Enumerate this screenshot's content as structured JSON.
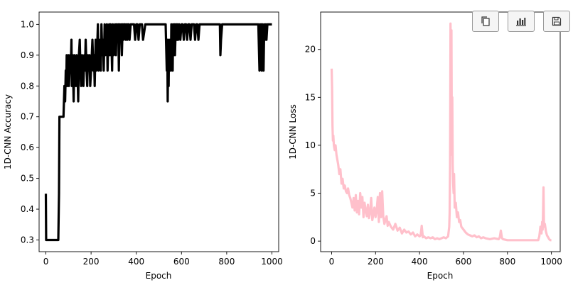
{
  "toolbar": {
    "buttons": [
      {
        "name": "copy-button",
        "icon": "copy-icon"
      },
      {
        "name": "chart-button",
        "icon": "bar-chart-icon"
      },
      {
        "name": "save-button",
        "icon": "floppy-disk-icon"
      }
    ]
  },
  "chart_data": [
    {
      "type": "line",
      "title": "",
      "xlabel": "Epoch",
      "ylabel": "1D-CNN Accuracy",
      "xlim": [
        -30,
        1030
      ],
      "ylim": [
        0.262,
        1.04
      ],
      "xticks": [
        0,
        200,
        400,
        600,
        800,
        1000
      ],
      "yticks": [
        0.3,
        0.4,
        0.5,
        0.6,
        0.7,
        0.8,
        0.9,
        1.0
      ],
      "color": "#000000",
      "grid": false,
      "series": [
        {
          "x": [
            0,
            1,
            2,
            40,
            55,
            58,
            60,
            78,
            82,
            85,
            88,
            90,
            92,
            95,
            97,
            100,
            102,
            105,
            108,
            110,
            113,
            115,
            118,
            120,
            123,
            126,
            130,
            133,
            136,
            140,
            143,
            146,
            150,
            153,
            156,
            160,
            163,
            166,
            170,
            173,
            176,
            180,
            183,
            186,
            190,
            193,
            196,
            200,
            203,
            206,
            210,
            213,
            216,
            220,
            223,
            226,
            230,
            233,
            236,
            240,
            243,
            246,
            250,
            253,
            256,
            260,
            263,
            266,
            270,
            273,
            276,
            280,
            283,
            286,
            290,
            293,
            296,
            300,
            303,
            306,
            310,
            313,
            316,
            320,
            323,
            326,
            330,
            333,
            336,
            340,
            343,
            346,
            350,
            353,
            356,
            360,
            363,
            366,
            370,
            375,
            380,
            385,
            390,
            395,
            400,
            405,
            410,
            415,
            420,
            425,
            430,
            440,
            450,
            460,
            470,
            480,
            490,
            500,
            510,
            520,
            530,
            535,
            537,
            539,
            541,
            543,
            545,
            547,
            549,
            551,
            553,
            555,
            557,
            559,
            561,
            563,
            565,
            567,
            569,
            571,
            573,
            575,
            577,
            579,
            581,
            583,
            585,
            590,
            595,
            600,
            605,
            610,
            615,
            620,
            625,
            630,
            635,
            640,
            645,
            650,
            655,
            660,
            665,
            670,
            675,
            680,
            700,
            720,
            740,
            760,
            770,
            772,
            775,
            780,
            800,
            850,
            900,
            940,
            945,
            948,
            950,
            953,
            955,
            958,
            960,
            963,
            966,
            970,
            973,
            976,
            980,
            985,
            990,
            1000
          ],
          "y": [
            0.45,
            0.3,
            0.3,
            0.3,
            0.3,
            0.45,
            0.7,
            0.7,
            0.8,
            0.75,
            0.85,
            0.8,
            0.9,
            0.8,
            0.85,
            0.9,
            0.8,
            0.85,
            0.9,
            0.85,
            0.95,
            0.8,
            0.9,
            0.85,
            0.75,
            0.9,
            0.85,
            0.8,
            0.9,
            0.85,
            0.75,
            0.9,
            0.95,
            0.85,
            0.8,
            0.9,
            0.85,
            0.8,
            0.9,
            0.85,
            0.95,
            0.85,
            0.8,
            0.9,
            0.85,
            0.9,
            0.8,
            0.85,
            0.9,
            0.95,
            0.85,
            0.9,
            0.8,
            0.95,
            0.85,
            0.9,
            1.0,
            0.85,
            0.9,
            0.95,
            0.85,
            1.0,
            0.9,
            0.95,
            0.85,
            1.0,
            0.9,
            0.95,
            1.0,
            0.85,
            0.95,
            1.0,
            0.9,
            1.0,
            0.95,
            0.85,
            1.0,
            0.9,
            0.95,
            1.0,
            0.9,
            1.0,
            0.95,
            1.0,
            0.85,
            1.0,
            0.95,
            1.0,
            0.9,
            1.0,
            0.95,
            1.0,
            1.0,
            0.95,
            1.0,
            0.95,
            1.0,
            1.0,
            0.95,
            1.0,
            1.0,
            1.0,
            1.0,
            0.95,
            1.0,
            1.0,
            0.95,
            1.0,
            1.0,
            1.0,
            0.95,
            1.0,
            1.0,
            1.0,
            1.0,
            1.0,
            1.0,
            1.0,
            1.0,
            1.0,
            1.0,
            0.85,
            0.95,
            0.75,
            0.9,
            0.8,
            0.95,
            0.85,
            0.9,
            0.95,
            0.85,
            1.0,
            0.9,
            0.95,
            0.85,
            1.0,
            0.9,
            0.95,
            1.0,
            0.9,
            0.95,
            1.0,
            0.95,
            1.0,
            0.95,
            1.0,
            0.95,
            1.0,
            0.95,
            1.0,
            1.0,
            0.95,
            1.0,
            1.0,
            0.95,
            1.0,
            1.0,
            0.95,
            1.0,
            1.0,
            1.0,
            0.95,
            1.0,
            1.0,
            0.95,
            1.0,
            1.0,
            1.0,
            1.0,
            1.0,
            1.0,
            0.9,
            0.95,
            1.0,
            1.0,
            1.0,
            1.0,
            1.0,
            0.85,
            1.0,
            0.9,
            1.0,
            0.85,
            1.0,
            0.9,
            0.85,
            1.0,
            0.95,
            1.0,
            0.95,
            1.0,
            1.0,
            1.0,
            1.0
          ]
        }
      ]
    },
    {
      "type": "line",
      "title": "",
      "xlabel": "Epoch",
      "ylabel": "1D-CNN Loss",
      "xlim": [
        -50,
        1040
      ],
      "ylim": [
        -1.1,
        23.9
      ],
      "xticks": [
        0,
        200,
        400,
        600,
        800,
        1000
      ],
      "yticks": [
        0,
        5,
        10,
        15,
        20
      ],
      "color": "#ffc0cb",
      "grid": false,
      "series": [
        {
          "x": [
            0,
            2,
            4,
            6,
            8,
            10,
            14,
            18,
            22,
            26,
            30,
            35,
            40,
            45,
            50,
            55,
            60,
            65,
            70,
            75,
            80,
            85,
            90,
            95,
            100,
            105,
            110,
            115,
            120,
            125,
            130,
            135,
            140,
            145,
            150,
            155,
            160,
            165,
            170,
            175,
            180,
            185,
            190,
            195,
            200,
            205,
            210,
            215,
            220,
            225,
            230,
            235,
            240,
            245,
            250,
            255,
            260,
            270,
            280,
            290,
            300,
            310,
            320,
            330,
            340,
            350,
            360,
            370,
            380,
            390,
            400,
            405,
            410,
            415,
            420,
            430,
            440,
            450,
            460,
            470,
            480,
            490,
            500,
            510,
            520,
            530,
            535,
            537,
            539,
            541,
            543,
            545,
            547,
            549,
            551,
            553,
            555,
            557,
            560,
            565,
            570,
            575,
            580,
            585,
            590,
            600,
            610,
            620,
            630,
            640,
            650,
            660,
            670,
            680,
            690,
            700,
            720,
            740,
            760,
            765,
            770,
            775,
            780,
            800,
            820,
            840,
            860,
            880,
            900,
            920,
            940,
            945,
            950,
            955,
            958,
            960,
            962,
            964,
            966,
            968,
            970,
            975,
            980,
            985,
            990,
            995,
            1000
          ],
          "y": [
            18,
            16,
            12,
            10.5,
            11,
            10,
            9.5,
            10,
            9,
            8.5,
            8,
            7,
            7.5,
            6,
            6.5,
            5.5,
            5.8,
            5.2,
            5,
            5.5,
            4.8,
            4.5,
            4,
            3.5,
            4.5,
            3.2,
            4.8,
            3,
            4.2,
            2.8,
            5,
            3.5,
            4.6,
            2.5,
            4,
            3.2,
            2.6,
            3.8,
            2.4,
            3,
            4.5,
            2.2,
            2.8,
            3.5,
            2.5,
            3.2,
            4.6,
            2,
            5,
            2.5,
            5.2,
            2.6,
            1.8,
            2.2,
            2.6,
            1.6,
            2,
            1.5,
            1.2,
            1.8,
            1.1,
            1.4,
            0.8,
            1.2,
            0.9,
            1,
            0.7,
            0.9,
            0.5,
            0.7,
            0.5,
            0.6,
            1.6,
            0.4,
            0.5,
            0.3,
            0.4,
            0.3,
            0.4,
            0.2,
            0.3,
            0.2,
            0.3,
            0.4,
            0.3,
            0.5,
            1.5,
            3,
            8,
            22.7,
            18,
            22,
            9,
            15,
            8,
            6,
            5,
            7,
            3.5,
            4,
            2.5,
            3,
            2,
            2.2,
            1.5,
            1.2,
            0.9,
            0.7,
            0.6,
            0.5,
            0.6,
            0.4,
            0.5,
            0.3,
            0.4,
            0.3,
            0.2,
            0.3,
            0.2,
            0.4,
            1.1,
            0.3,
            0.2,
            0.1,
            0.1,
            0.1,
            0.1,
            0.1,
            0.1,
            0.1,
            0.1,
            0.5,
            1.5,
            0.8,
            2,
            1.2,
            3,
            5.6,
            2,
            1.5,
            1.8,
            1,
            0.6,
            0.4,
            0.2,
            0.1,
            0.1
          ]
        }
      ]
    }
  ]
}
